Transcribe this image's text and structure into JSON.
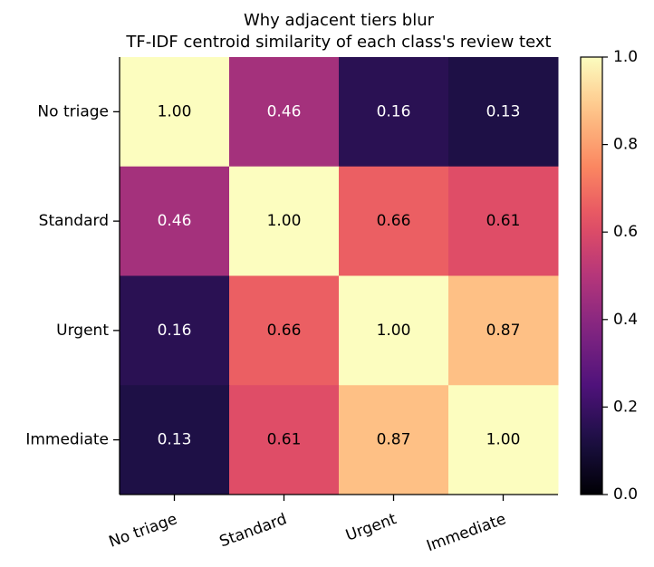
{
  "chart_data": {
    "type": "heatmap",
    "title": "Why adjacent tiers blur",
    "subtitle": "TF-IDF centroid similarity of each class's review text",
    "x_categories": [
      "No triage",
      "Standard",
      "Urgent",
      "Immediate"
    ],
    "y_categories": [
      "No triage",
      "Standard",
      "Urgent",
      "Immediate"
    ],
    "values": [
      [
        1.0,
        0.46,
        0.16,
        0.13
      ],
      [
        0.46,
        1.0,
        0.66,
        0.61
      ],
      [
        0.16,
        0.66,
        1.0,
        0.87
      ],
      [
        0.13,
        0.61,
        0.87,
        1.0
      ]
    ],
    "value_format": "0.00",
    "colormap": "magma",
    "vmin": 0.0,
    "vmax": 1.0,
    "colorbar_ticks": [
      "0.0",
      "0.2",
      "0.4",
      "0.6",
      "0.8",
      "1.0"
    ],
    "text_color_dark": "#000000",
    "text_color_light": "#ffffff"
  }
}
